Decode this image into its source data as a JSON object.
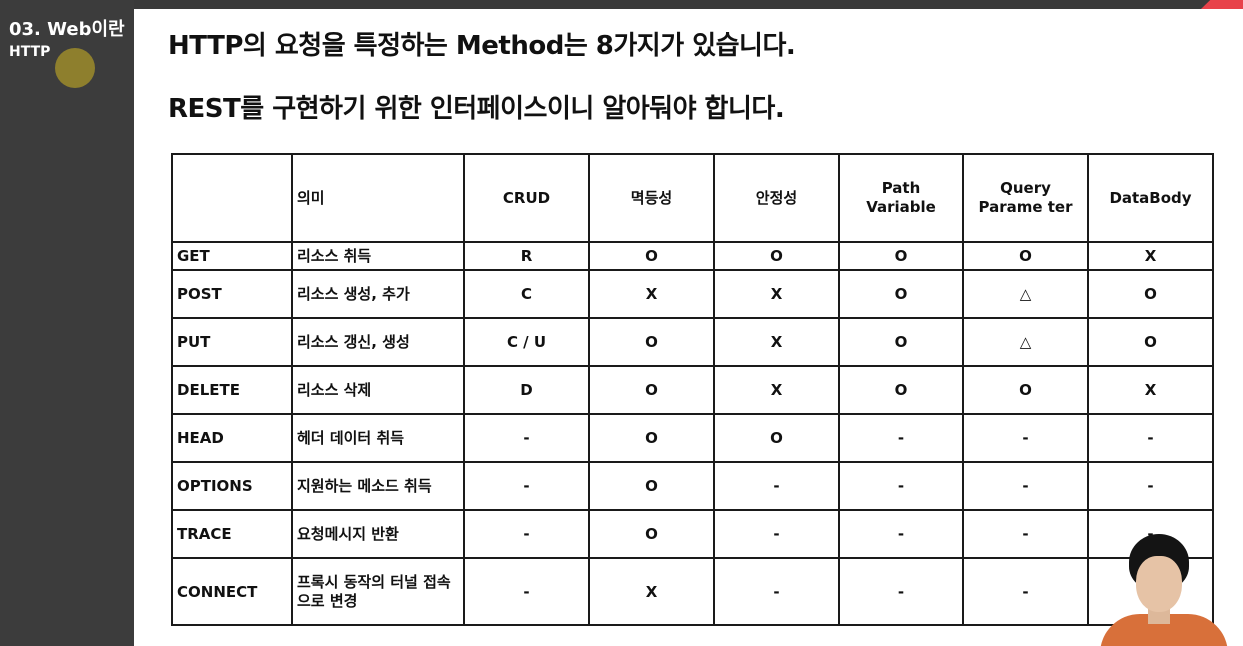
{
  "sidebar": {
    "chapter": "03. Web이란",
    "section": "HTTP"
  },
  "headline": {
    "line1": "HTTP의 요청을 특정하는 Method는 8가지가 있습니다.",
    "line2": "REST를 구현하기 위한 인터페이스이니 알아둬야 합니다."
  },
  "table": {
    "headers": [
      "",
      "의미",
      "CRUD",
      "멱등성",
      "안정성",
      "Path Variable",
      "Query Parame ter",
      "DataBody"
    ],
    "rows": [
      [
        "GET",
        "리소스 취득",
        "R",
        "O",
        "O",
        "O",
        "O",
        "X"
      ],
      [
        "POST",
        "리소스 생성, 추가",
        "C",
        "X",
        "X",
        "O",
        "△",
        "O"
      ],
      [
        "PUT",
        "리소스 갱신, 생성",
        "C / U",
        "O",
        "X",
        "O",
        "△",
        "O"
      ],
      [
        "DELETE",
        "리소스 삭제",
        "D",
        "O",
        "X",
        "O",
        "O",
        "X"
      ],
      [
        "HEAD",
        "헤더 데이터 취득",
        "-",
        "O",
        "O",
        "-",
        "-",
        "-"
      ],
      [
        "OPTIONS",
        "지원하는 메소드 취득",
        "-",
        "O",
        "-",
        "-",
        "-",
        "-"
      ],
      [
        "TRACE",
        "요청메시지 반환",
        "-",
        "O",
        "-",
        "-",
        "-",
        "-"
      ],
      [
        "CONNECT",
        "프록시 동작의 터널 접속으로 변경",
        "-",
        "X",
        "-",
        "-",
        "-",
        "-"
      ]
    ]
  },
  "colors": {
    "sidebar_bg": "#3c3c3c",
    "accent": "#e8424a"
  }
}
